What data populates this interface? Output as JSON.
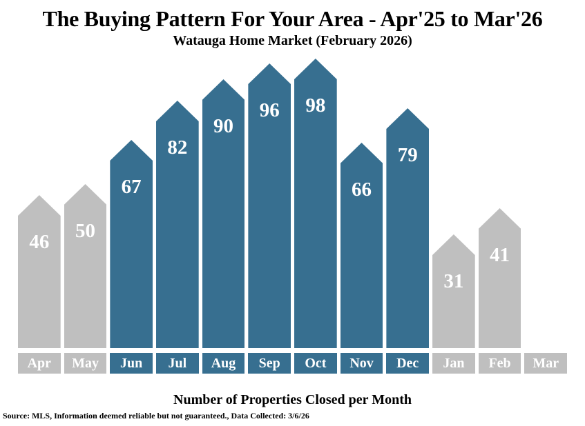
{
  "header": {
    "title": "The Buying Pattern For Your Area - Apr'25 to Mar'26",
    "subtitle": "Watauga Home Market (February 2026)"
  },
  "footer": {
    "xlabel": "Number of Properties Closed per Month",
    "source": "Source: MLS, Information deemed reliable but not guaranteed., Data Collected: 3/6/26"
  },
  "colors": {
    "highlight_bar": "#376F90",
    "muted_bar": "#BFBFBF",
    "value_label": "#FFFFFF",
    "month_label": "#FFFFFF",
    "text": "#000000",
    "background": "#FFFFFF"
  },
  "chart_data": {
    "type": "bar",
    "title": "The Buying Pattern For Your Area - Apr'25 to Mar'26",
    "subtitle": "Watauga Home Market (February 2026)",
    "xlabel": "Number of Properties Closed per Month",
    "ylabel": "",
    "categories": [
      "Apr",
      "May",
      "Jun",
      "Jul",
      "Aug",
      "Sep",
      "Oct",
      "Nov",
      "Dec",
      "Jan",
      "Feb",
      "Mar"
    ],
    "values": [
      46,
      50,
      67,
      82,
      90,
      96,
      98,
      66,
      79,
      31,
      41,
      null
    ],
    "highlighted": [
      false,
      false,
      true,
      true,
      true,
      true,
      true,
      true,
      true,
      false,
      false,
      false
    ],
    "bar_shape": "pentagon (pointed / arrow top)",
    "value_labels_on_bars": true,
    "ylim": [
      0,
      100
    ],
    "grid": false,
    "legend": "none",
    "axes_drawn": false,
    "source": "Source: MLS, Information deemed reliable but not guaranteed., Data Collected: 3/6/26"
  }
}
